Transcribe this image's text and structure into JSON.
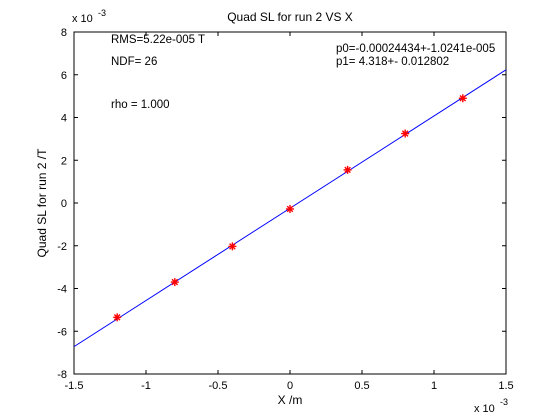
{
  "chart_data": {
    "type": "scatter",
    "title": "Quad SL for run 2 VS X",
    "xlabel": "X /m",
    "ylabel": "Quad SL for run 2 /T",
    "x_exponent": "x 10^-3",
    "y_exponent": "x 10^-3",
    "xlim": [
      -1.5,
      1.5
    ],
    "ylim": [
      -8,
      8
    ],
    "xticks": [
      -1.5,
      -1,
      -0.5,
      0,
      0.5,
      1,
      1.5
    ],
    "xtick_labels": [
      "-1.5",
      "-1",
      "-0.5",
      "0",
      "0.5",
      "1",
      "1.5"
    ],
    "yticks": [
      -8,
      -6,
      -4,
      -2,
      0,
      2,
      4,
      6,
      8
    ],
    "ytick_labels": [
      "-8",
      "-6",
      "-4",
      "-2",
      "0",
      "2",
      "4",
      "6",
      "8"
    ],
    "grid": false,
    "series": [
      {
        "kind": "markers",
        "marker": "asterisk",
        "color": "#ff0000",
        "x": [
          -1.2,
          -0.8,
          -0.4,
          0.0,
          0.4,
          0.8,
          1.2
        ],
        "y": [
          -5.35,
          -3.7,
          -2.03,
          -0.28,
          1.55,
          3.25,
          4.9
        ]
      },
      {
        "kind": "fit-line",
        "color": "#0000ff",
        "x": [
          -1.5,
          1.5
        ],
        "y": [
          -6.72,
          6.23
        ]
      }
    ],
    "annotations": {
      "rms": "RMS=5.22e-005 T",
      "ndf": "NDF=   26",
      "rho": "rho     =  1.000",
      "p0": "p0=-0.00024434+-1.0241e-005",
      "p1": "p1=    4.318+- 0.012802"
    }
  }
}
